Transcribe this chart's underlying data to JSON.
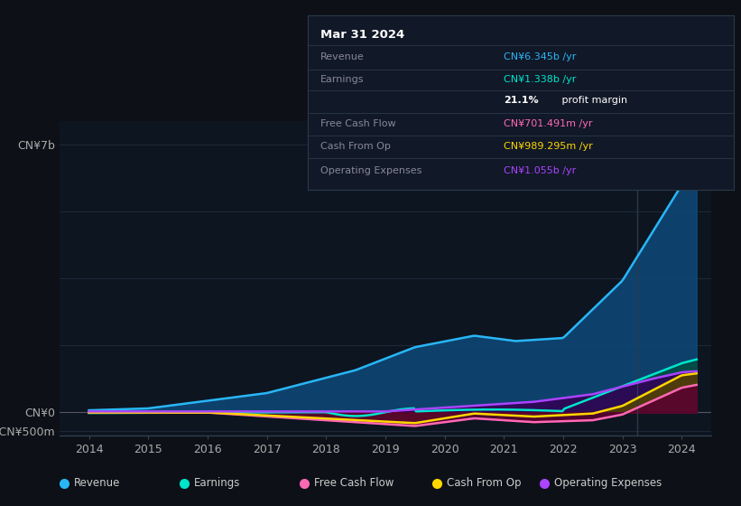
{
  "bg_color": "#0d1117",
  "plot_bg_color": "#0d1520",
  "grid_color": "#1e2a3a",
  "text_color": "#aaaaaa",
  "series": {
    "revenue": {
      "color": "#29b6f6",
      "fill_color": "#0d4a7a",
      "label": "Revenue"
    },
    "earnings": {
      "color": "#00e5cc",
      "fill_color": "#004d44",
      "label": "Earnings"
    },
    "free_cash_flow": {
      "color": "#ff69b4",
      "fill_color": "#5a0030",
      "label": "Free Cash Flow"
    },
    "cash_from_op": {
      "color": "#ffd700",
      "fill_color": "#554400",
      "label": "Cash From Op"
    },
    "operating_expenses": {
      "color": "#aa44ff",
      "fill_color": "#330055",
      "label": "Operating Expenses"
    }
  },
  "tooltip": {
    "date": "Mar 31 2024",
    "rows": [
      {
        "label": "Revenue",
        "value": "CN¥6.345b /yr",
        "color": "#29b6f6"
      },
      {
        "label": "Earnings",
        "value": "CN¥1.338b /yr",
        "color": "#00e5cc"
      },
      {
        "label": "",
        "value": "21.1% profit margin",
        "color": "#ffffff",
        "bold": "21.1%"
      },
      {
        "label": "Free Cash Flow",
        "value": "CN¥701.491m /yr",
        "color": "#ff69b4"
      },
      {
        "label": "Cash From Op",
        "value": "CN¥989.295m /yr",
        "color": "#ffd700"
      },
      {
        "label": "Operating Expenses",
        "value": "CN¥1.055b /yr",
        "color": "#aa44ff"
      }
    ]
  },
  "legend": [
    {
      "label": "Revenue",
      "color": "#29b6f6"
    },
    {
      "label": "Earnings",
      "color": "#00e5cc"
    },
    {
      "label": "Free Cash Flow",
      "color": "#ff69b4"
    },
    {
      "label": "Cash From Op",
      "color": "#ffd700"
    },
    {
      "label": "Operating Expenses",
      "color": "#aa44ff"
    }
  ],
  "x_ticks": [
    2014,
    2015,
    2016,
    2017,
    2018,
    2019,
    2020,
    2021,
    2022,
    2023,
    2024
  ],
  "ytick_vals": [
    7000000000,
    0,
    -500000000
  ],
  "ytick_labels": [
    "CN¥7b",
    "CN¥0",
    "-CN¥500m"
  ],
  "ylim": [
    -600000000,
    7600000000
  ],
  "xlim": [
    2013.5,
    2024.5
  ]
}
